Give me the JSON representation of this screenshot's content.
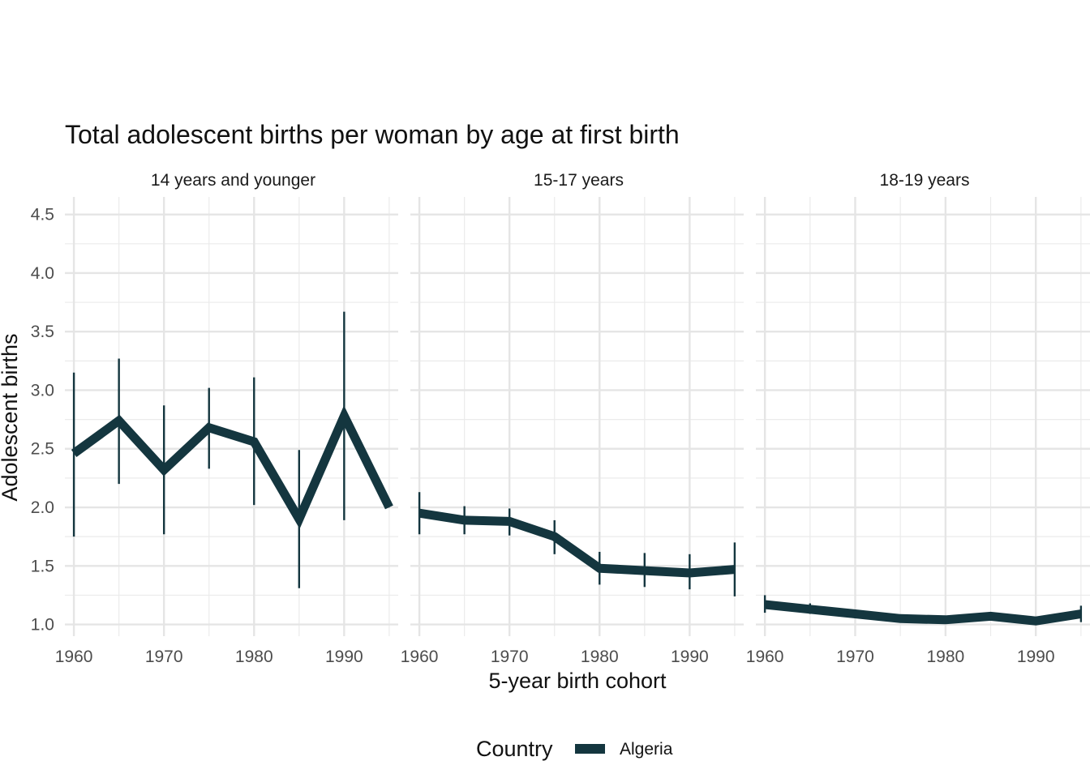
{
  "chart_data": {
    "type": "line",
    "title": "Total adolescent births per woman by age at first birth",
    "xlabel": "5-year birth cohort",
    "ylabel": "Adolescent births",
    "x_ticks": [
      "1960",
      "1970",
      "1980",
      "1990"
    ],
    "y_ticks": [
      "1.0",
      "1.5",
      "2.0",
      "2.5",
      "3.0",
      "3.5",
      "4.0",
      "4.5"
    ],
    "xlim": [
      1959,
      1996
    ],
    "ylim": [
      0.9,
      4.65
    ],
    "grid": true,
    "legend": {
      "title": "Country",
      "position": "bottom",
      "entries": [
        "Algeria"
      ]
    },
    "series_color": "#14363f",
    "panels": [
      {
        "label": "14 years and younger",
        "x": [
          1960,
          1965,
          1970,
          1975,
          1980,
          1985,
          1990,
          1995
        ],
        "y": [
          2.46,
          2.74,
          2.32,
          2.68,
          2.56,
          1.9,
          2.78,
          2.0
        ],
        "lower": [
          1.75,
          2.2,
          1.77,
          2.33,
          2.02,
          1.31,
          1.89,
          2.0
        ],
        "upper": [
          3.15,
          3.27,
          2.87,
          3.02,
          3.11,
          2.49,
          3.67,
          2.0
        ]
      },
      {
        "label": "15-17 years",
        "x": [
          1960,
          1965,
          1970,
          1975,
          1980,
          1985,
          1990,
          1995
        ],
        "y": [
          1.95,
          1.89,
          1.88,
          1.75,
          1.48,
          1.46,
          1.44,
          1.47
        ],
        "lower": [
          1.77,
          1.77,
          1.76,
          1.6,
          1.34,
          1.32,
          1.3,
          1.24
        ],
        "upper": [
          2.13,
          2.01,
          1.99,
          1.89,
          1.62,
          1.61,
          1.6,
          1.7
        ]
      },
      {
        "label": "18-19 years",
        "x": [
          1960,
          1965,
          1970,
          1975,
          1980,
          1985,
          1990,
          1995
        ],
        "y": [
          1.17,
          1.13,
          1.09,
          1.05,
          1.04,
          1.07,
          1.03,
          1.09
        ],
        "lower": [
          1.1,
          1.09,
          1.09,
          1.05,
          1.04,
          1.05,
          1.03,
          1.02
        ],
        "upper": [
          1.25,
          1.18,
          1.09,
          1.05,
          1.04,
          1.1,
          1.03,
          1.16
        ]
      }
    ]
  }
}
